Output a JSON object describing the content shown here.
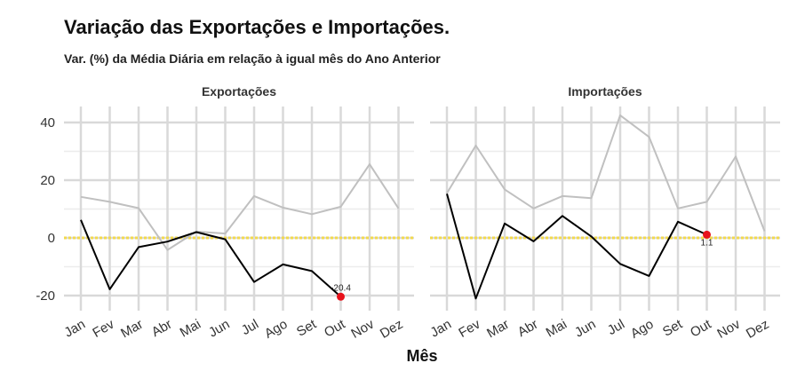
{
  "chart_data": {
    "type": "line",
    "title": "Variação das Exportações e Importações.",
    "subtitle": "Var. (%) da Média Diária em relação à igual mês do Ano Anterior",
    "xlabel": "Mês",
    "ylabel": "",
    "ylim": [
      -24,
      46
    ],
    "yticks": [
      -20,
      0,
      20,
      40
    ],
    "categories": [
      "Jan",
      "Fev",
      "Mar",
      "Abr",
      "Mai",
      "Jun",
      "Jul",
      "Ago",
      "Set",
      "Out",
      "Nov",
      "Dez"
    ],
    "reference_line": {
      "y": 0,
      "color": "#f2d94e",
      "style": "dotted"
    },
    "grid": true,
    "panels": [
      {
        "name": "Exportações",
        "series": [
          {
            "values": [
              14.2,
              12.5,
              10.3,
              -4.2,
              2.2,
              1.5,
              14.5,
              10.5,
              8.2,
              10.8,
              25.5,
              10.2
            ],
            "color": "#c0c0c0"
          },
          {
            "values": [
              6.2,
              -17.8,
              -3.2,
              -1.3,
              2.0,
              -0.5,
              -15.3,
              -9.2,
              -11.5,
              -20.4
            ],
            "color": "#000000"
          }
        ],
        "highlight": {
          "category": "Out",
          "value": -20.4,
          "label": "-20.4",
          "color": "#e8121b"
        }
      },
      {
        "name": "Importações",
        "series": [
          {
            "values": [
              15.5,
              32.0,
              16.8,
              10.2,
              14.5,
              13.8,
              42.5,
              35.0,
              10.2,
              12.5,
              28.2,
              2.3
            ],
            "color": "#c0c0c0"
          },
          {
            "values": [
              15.3,
              -21.0,
              5.0,
              -1.2,
              7.6,
              0.5,
              -9.0,
              -13.2,
              5.6,
              1.1
            ],
            "color": "#000000"
          }
        ],
        "highlight": {
          "category": "Out",
          "value": 1.1,
          "label": "1.1",
          "color": "#e8121b"
        }
      }
    ]
  }
}
